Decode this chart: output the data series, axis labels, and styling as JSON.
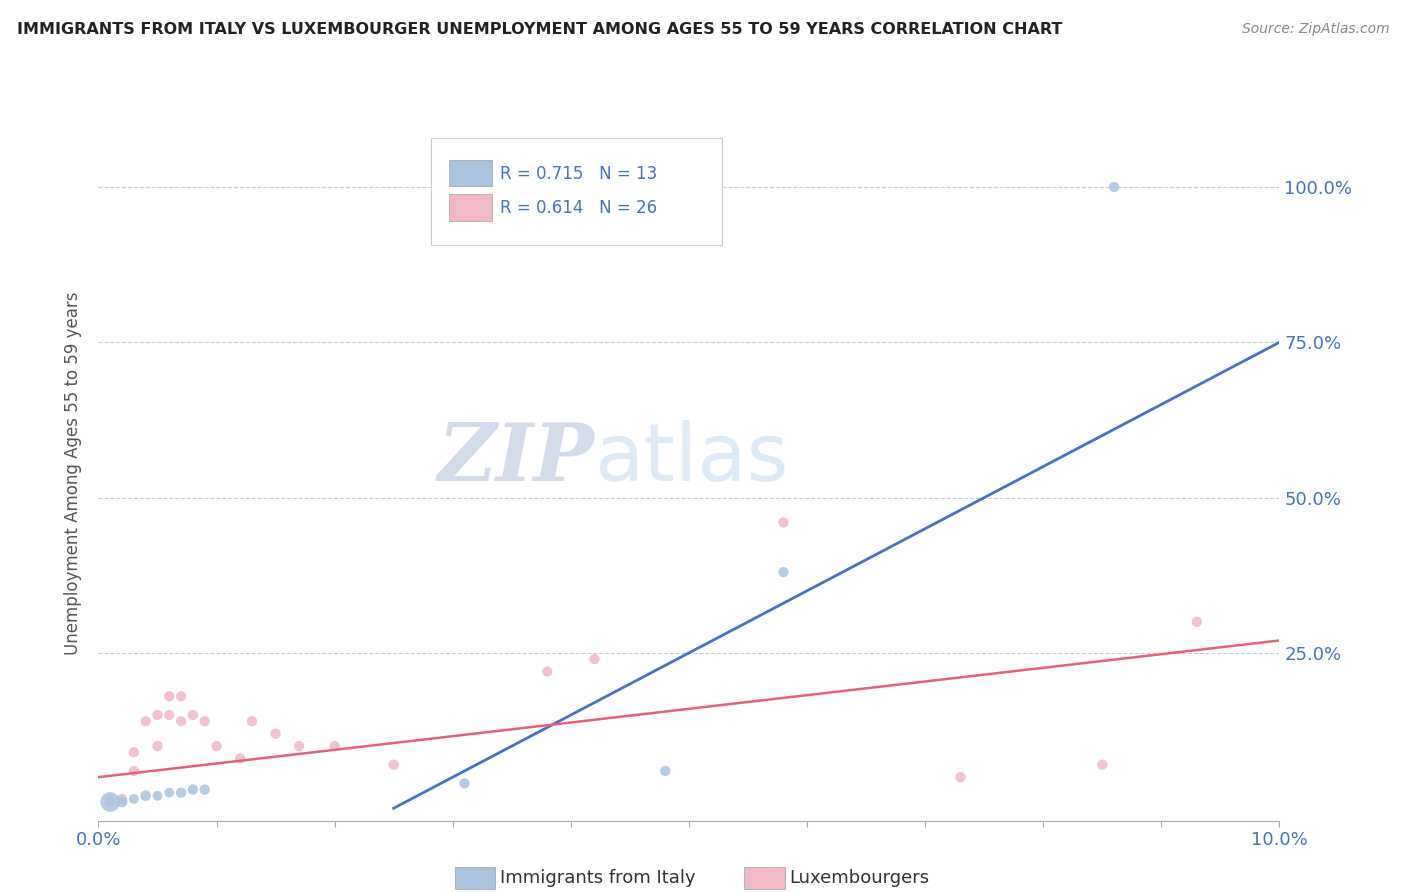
{
  "title": "IMMIGRANTS FROM ITALY VS LUXEMBOURGER UNEMPLOYMENT AMONG AGES 55 TO 59 YEARS CORRELATION CHART",
  "source": "Source: ZipAtlas.com",
  "ylabel": "Unemployment Among Ages 55 to 59 years",
  "xlim": [
    0.0,
    0.1
  ],
  "ylim": [
    -0.02,
    1.1
  ],
  "yticks": [
    0.0,
    0.25,
    0.5,
    0.75,
    1.0
  ],
  "ytick_labels": [
    "",
    "25.0%",
    "50.0%",
    "75.0%",
    "100.0%"
  ],
  "r_blue": 0.715,
  "n_blue": 13,
  "r_pink": 0.614,
  "n_pink": 26,
  "blue_color": "#A8C4E0",
  "pink_color": "#F2B8C6",
  "blue_line_color": "#4472C4",
  "pink_line_color": "#E8607A",
  "watermark_zip": "ZIP",
  "watermark_atlas": "atlas",
  "blue_scatter_x": [
    0.001,
    0.002,
    0.003,
    0.004,
    0.005,
    0.006,
    0.007,
    0.008,
    0.009,
    0.031,
    0.048,
    0.058,
    0.086
  ],
  "blue_scatter_y": [
    0.01,
    0.01,
    0.015,
    0.02,
    0.02,
    0.025,
    0.025,
    0.03,
    0.03,
    0.04,
    0.06,
    0.38,
    1.0
  ],
  "blue_scatter_size": [
    200,
    60,
    50,
    60,
    50,
    50,
    55,
    55,
    55,
    55,
    55,
    55,
    55
  ],
  "pink_scatter_x": [
    0.001,
    0.002,
    0.003,
    0.003,
    0.004,
    0.005,
    0.005,
    0.006,
    0.006,
    0.007,
    0.007,
    0.008,
    0.009,
    0.01,
    0.012,
    0.013,
    0.015,
    0.017,
    0.02,
    0.025,
    0.038,
    0.042,
    0.058,
    0.073,
    0.085,
    0.093
  ],
  "pink_scatter_y": [
    0.01,
    0.015,
    0.06,
    0.09,
    0.14,
    0.1,
    0.15,
    0.15,
    0.18,
    0.14,
    0.18,
    0.15,
    0.14,
    0.1,
    0.08,
    0.14,
    0.12,
    0.1,
    0.1,
    0.07,
    0.22,
    0.24,
    0.46,
    0.05,
    0.07,
    0.3
  ],
  "pink_scatter_size": [
    55,
    55,
    55,
    55,
    55,
    55,
    55,
    55,
    55,
    55,
    55,
    55,
    55,
    55,
    55,
    55,
    55,
    55,
    55,
    55,
    55,
    55,
    55,
    55,
    55,
    55
  ],
  "blue_trend_x": [
    0.025,
    0.1
  ],
  "blue_trend_y": [
    0.0,
    0.75
  ],
  "pink_trend_x": [
    0.0,
    0.1
  ],
  "pink_trend_y": [
    0.05,
    0.27
  ]
}
